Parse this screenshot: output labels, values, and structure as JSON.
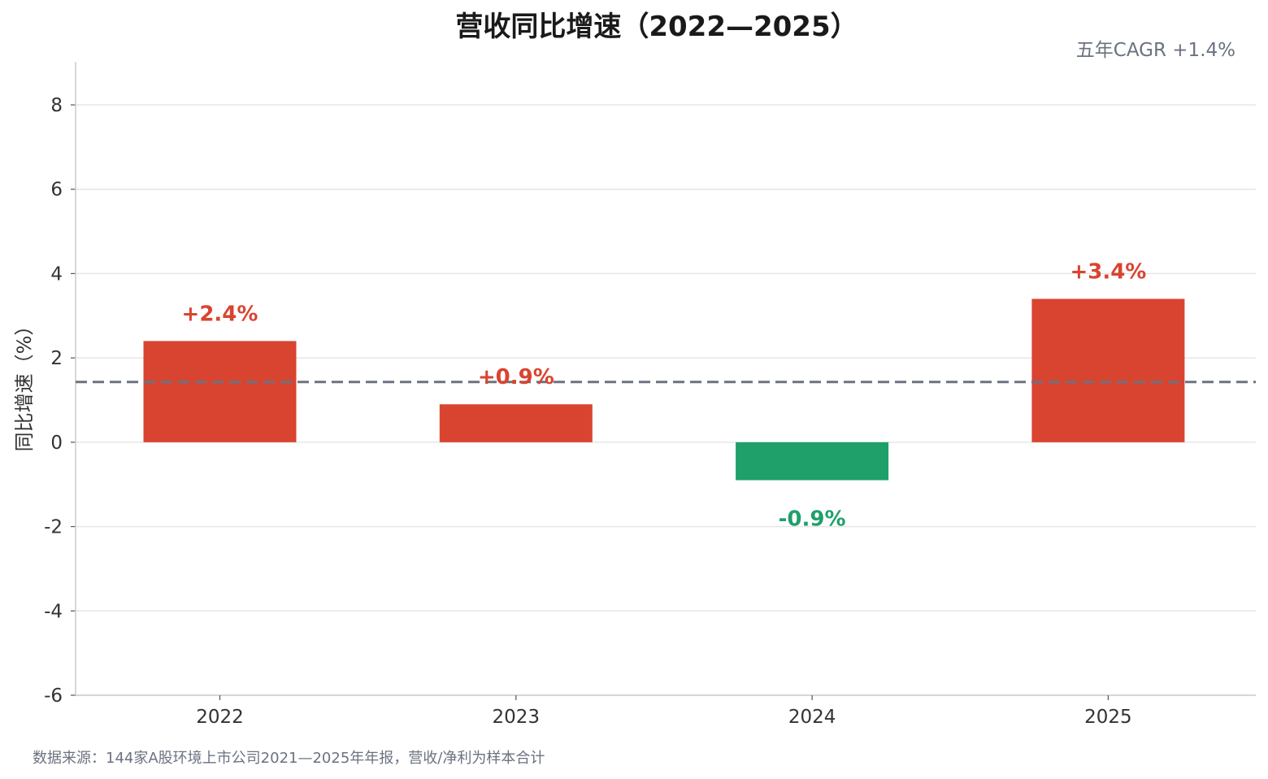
{
  "chart_data": {
    "type": "bar",
    "title": "营收同比增速（2022—2025）",
    "annotation": "五年CAGR +1.4%",
    "ylabel": "同比增速（%）",
    "xlabel": "",
    "categories": [
      "2022",
      "2023",
      "2024",
      "2025"
    ],
    "values": [
      2.4,
      0.9,
      -0.9,
      3.4
    ],
    "value_labels": [
      "+2.4%",
      "+0.9%",
      "-0.9%",
      "+3.4%"
    ],
    "ylim": [
      -6,
      9
    ],
    "yticks": [
      -6,
      -4,
      -2,
      0,
      2,
      4,
      6,
      8
    ],
    "ytick_labels": [
      "-6",
      "-4",
      "-2",
      "0",
      "2",
      "4",
      "6",
      "8"
    ],
    "reference_line": {
      "value": 1.43,
      "style": "dashed",
      "color": "#6b7280"
    },
    "grid": true,
    "colors": {
      "positive": "#d94430",
      "negative": "#1f9f6a"
    },
    "source": "数据来源：144家A股环境上市公司2021—2025年年报，营收/净利为样本合计"
  }
}
